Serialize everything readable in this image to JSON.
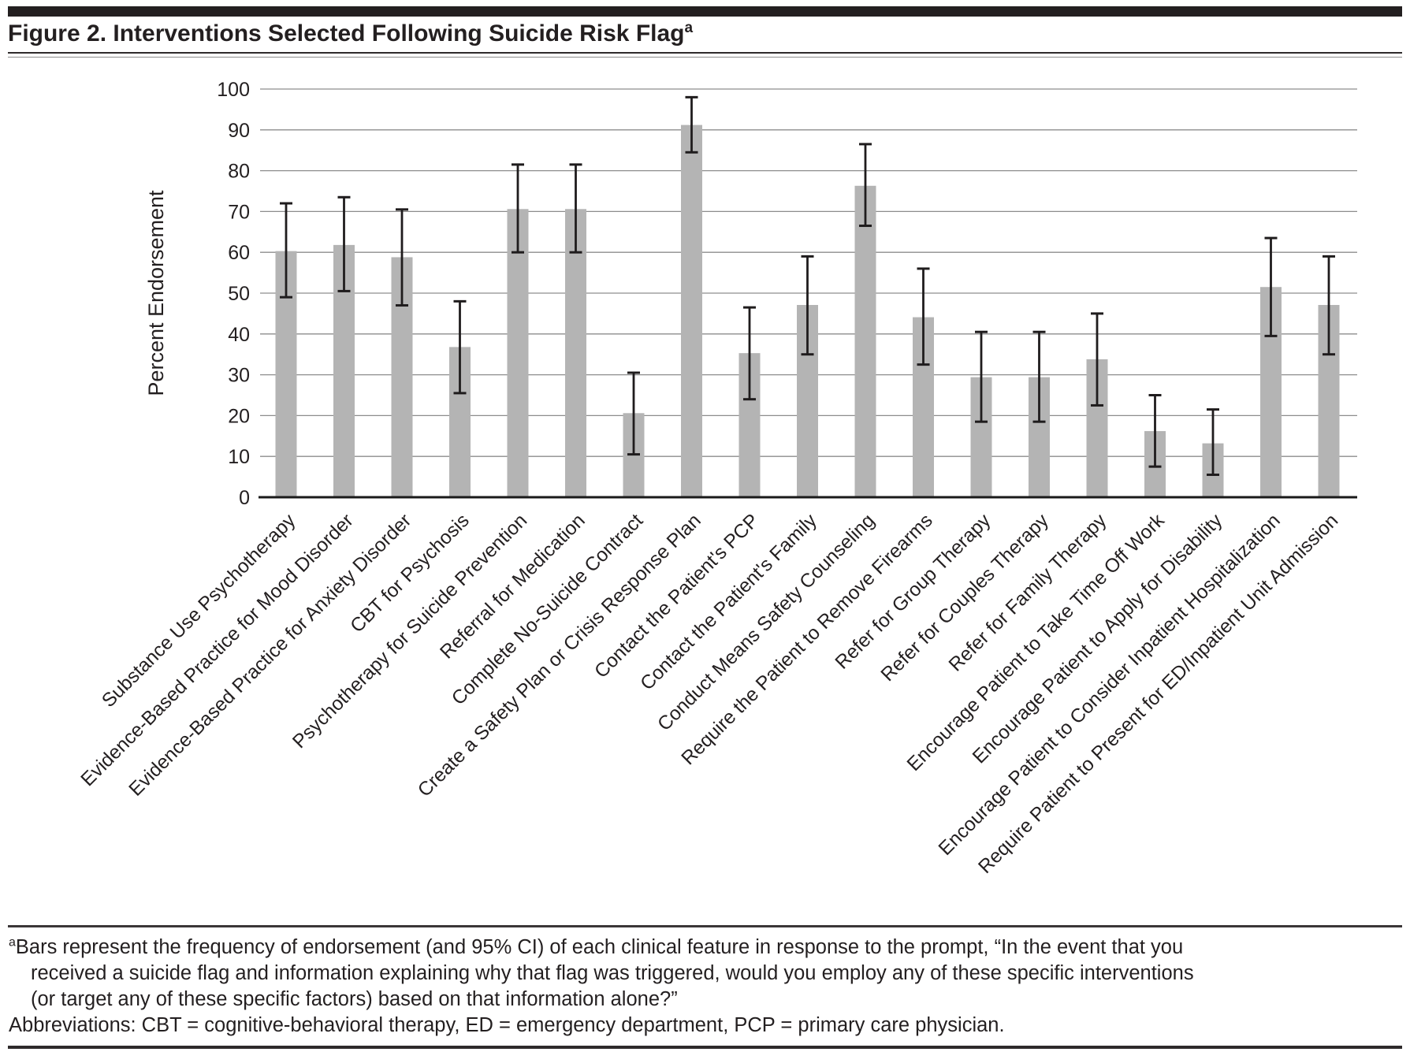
{
  "figure": {
    "title": "Figure 2. Interventions Selected Following Suicide Risk Flag",
    "title_superscript": "a"
  },
  "chart_data": {
    "type": "bar",
    "title": "Interventions Selected Following Suicide Risk Flag",
    "xlabel": "",
    "ylabel": "Percent Endorsement",
    "ylim": [
      0,
      100
    ],
    "ytick_interval": 10,
    "grid": "horizontal",
    "legend_position": "none",
    "bar_color": "#b4b4b4",
    "error_color": "#1f1c1d",
    "gridline_color": "#8d8d8d",
    "axis_color": "#1a1a1a",
    "error_bars": "95% CI",
    "categories": [
      "Substance Use Psychotherapy",
      "Evidence-Based Practice for Mood Disorder",
      "Evidence-Based Practice for Anxiety Disorder",
      "CBT for Psychosis",
      "Psychotherapy for Suicide Prevention",
      "Referral for Medication",
      "Complete No-Suicide Contract",
      "Create a Safety Plan or Crisis Response Plan",
      "Contact the Patient's PCP",
      "Contact the Patient's Family",
      "Conduct Means Safety Counseling",
      "Require the Patient to Remove Firearms",
      "Refer for Group Therapy",
      "Refer for Couples Therapy",
      "Refer for Family Therapy",
      "Encourage Patient to Take Time Off Work",
      "Encourage Patient to Apply for Disability",
      "Encourage Patient to Consider Inpatient Hospitalization",
      "Require Patient to Present for ED/Inpatient Unit Admission"
    ],
    "values": [
      60.3,
      61.8,
      58.8,
      36.8,
      70.6,
      70.6,
      20.6,
      91.2,
      35.3,
      47.1,
      76.3,
      44.1,
      29.4,
      29.4,
      33.8,
      16.2,
      13.2,
      51.5,
      47.1
    ],
    "ci_low": [
      49.0,
      50.5,
      47.0,
      25.5,
      60.0,
      60.0,
      10.5,
      84.5,
      24.0,
      35.0,
      66.5,
      32.5,
      18.5,
      18.5,
      22.5,
      7.5,
      5.5,
      39.5,
      35.0
    ],
    "ci_high": [
      72.0,
      73.5,
      70.5,
      48.0,
      81.5,
      81.5,
      30.5,
      98.0,
      46.5,
      59.0,
      86.5,
      56.0,
      40.5,
      40.5,
      45.0,
      25.0,
      21.5,
      63.5,
      59.0
    ]
  },
  "footnote": {
    "lines": [
      {
        "superscript": "a",
        "indent": false,
        "text": "Bars represent the frequency of endorsement (and 95% CI) of each clinical feature in response to the prompt, “In the event that you"
      },
      {
        "indent": true,
        "text": "received a suicide flag and information explaining why that flag was triggered, would you employ any of these specific interventions"
      },
      {
        "indent": true,
        "text": "(or target any of these specific factors) based on that information alone?”"
      },
      {
        "indent": false,
        "text": "Abbreviations: CBT = cognitive-behavioral therapy, ED = emergency department, PCP = primary care physician."
      }
    ]
  }
}
